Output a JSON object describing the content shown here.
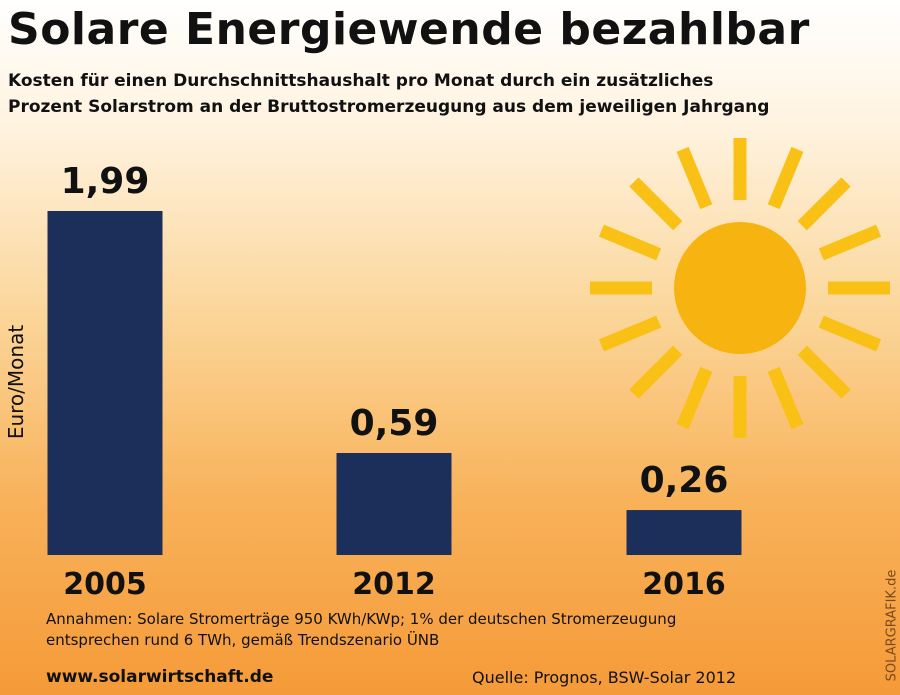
{
  "colors": {
    "bar": "#1c2f5a",
    "sun": "#f9c116",
    "sun_core": "#f7b30f"
  },
  "chart_data": {
    "type": "bar",
    "title": "Solare Energiewende bezahlbar",
    "subtitle_lines": [
      "Kosten für einen Durchschnittshaushalt pro Monat durch ein zusätzliches",
      "Prozent Solarstrom an der Bruttostromerzeugung aus dem jeweiligen Jahrgang"
    ],
    "ylabel": "Euro/Monat",
    "categories": [
      "2005",
      "2012",
      "2016"
    ],
    "values": [
      1.99,
      0.59,
      0.26
    ],
    "value_labels": [
      "1,99",
      "0,59",
      "0,26"
    ],
    "ylim": [
      0,
      2
    ],
    "grid": false,
    "legend": "none"
  },
  "footer": {
    "notes_lines": [
      "Annahmen: Solare Stromerträge 950 KWh/KWp; 1% der deutschen Stromerzeugung",
      "entsprechen rund 6 TWh, gemäß Trendszenario ÜNB"
    ],
    "url": "www.solarwirtschaft.de",
    "source": "Quelle: Prognos, BSW-Solar 2012",
    "brand": "SOLARGRAFIK.de"
  }
}
